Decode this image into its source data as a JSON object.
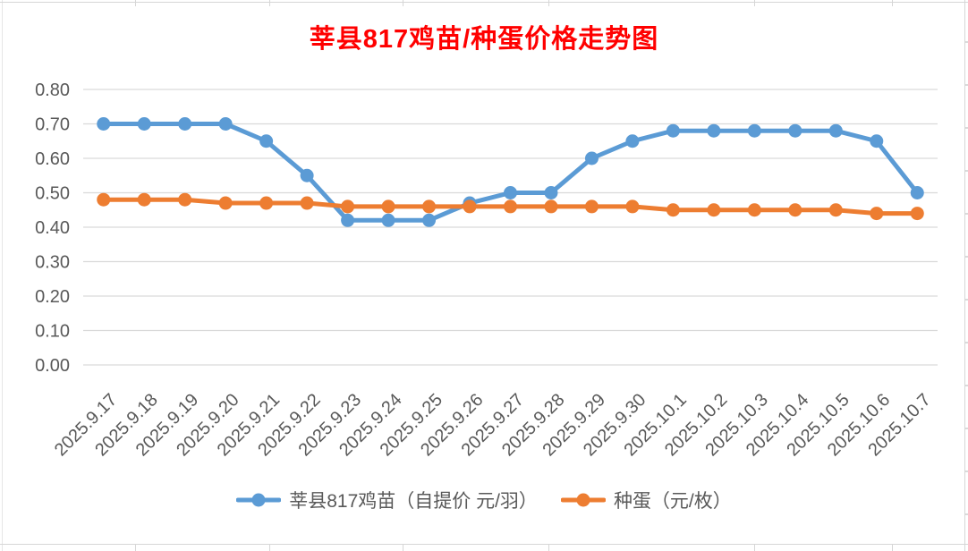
{
  "colors": {
    "title": "#FF0000",
    "axis_text": "#595959",
    "gridline": "#D9D9D9",
    "sheet_line": "#D6D6D6",
    "background": "#FFFFFF"
  },
  "chart_data": {
    "type": "line",
    "title": "莘县817鸡苗/种蛋价格走势图",
    "categories": [
      "2025.9.17",
      "2025.9.18",
      "2025.9.19",
      "2025.9.20",
      "2025.9.21",
      "2025.9.22",
      "2025.9.23",
      "2025.9.24",
      "2025.9.25",
      "2025.9.26",
      "2025.9.27",
      "2025.9.28",
      "2025.9.29",
      "2025.9.30",
      "2025.10.1",
      "2025.10.2",
      "2025.10.3",
      "2025.10.4",
      "2025.10.5",
      "2025.10.6",
      "2025.10.7"
    ],
    "series": [
      {
        "name": "莘县817鸡苗（自提价 元/羽）",
        "color": "#5B9BD5",
        "values": [
          0.7,
          0.7,
          0.7,
          0.7,
          0.65,
          0.55,
          0.42,
          0.42,
          0.42,
          0.47,
          0.5,
          0.5,
          0.6,
          0.65,
          0.68,
          0.68,
          0.68,
          0.68,
          0.68,
          0.65,
          0.5
        ]
      },
      {
        "name": "种蛋（元/枚）",
        "color": "#ED7D31",
        "values": [
          0.48,
          0.48,
          0.48,
          0.47,
          0.47,
          0.47,
          0.46,
          0.46,
          0.46,
          0.46,
          0.46,
          0.46,
          0.46,
          0.46,
          0.45,
          0.45,
          0.45,
          0.45,
          0.45,
          0.44,
          0.44
        ]
      }
    ],
    "xlabel": "",
    "ylabel": "",
    "ylim": [
      0.0,
      0.8
    ],
    "ytick_step": 0.1,
    "ytick_labels": [
      "0.00",
      "0.10",
      "0.20",
      "0.30",
      "0.40",
      "0.50",
      "0.60",
      "0.70",
      "0.80"
    ],
    "grid": true,
    "legend_position": "bottom",
    "x_label_rotation_deg": -45
  }
}
